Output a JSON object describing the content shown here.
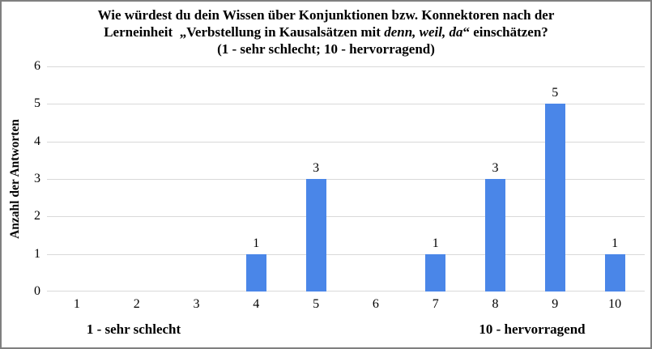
{
  "frame": {
    "background": "#ffffff",
    "border_color": "#7f7f7f"
  },
  "title": {
    "line1": "Wie würdest du dein Wissen über Konjunktionen bzw. Konnektoren nach der",
    "line2_prefix": "Lerneinheit  „Verbstellung in Kausalsätzen mit ",
    "line2_italic": "denn, weil, da",
    "line2_suffix": "“ einschätzen?",
    "line3": "(1 - sehr schlecht; 10 - hervorragend)"
  },
  "chart_data": {
    "type": "bar",
    "title": "Wie würdest du dein Wissen über Konjunktionen bzw. Konnektoren nach der Lerneinheit „Verbstellung in Kausalsätzen mit denn, weil, da“ einschätzen? (1 - sehr schlecht; 10 - hervorragend)",
    "categories": [
      "1",
      "2",
      "3",
      "4",
      "5",
      "6",
      "7",
      "8",
      "9",
      "10"
    ],
    "values": [
      0,
      0,
      0,
      1,
      3,
      0,
      1,
      3,
      5,
      1
    ],
    "ylabel": "Anzahl der Antworten",
    "xlabel_left": "1 - sehr schlecht",
    "xlabel_right": "10 - hervorragend",
    "ylim": [
      0,
      6
    ],
    "ytick_step": 1,
    "grid": true,
    "legend": "none",
    "bar_color": "#4a86e8",
    "gridline_color": "#d9d9d9",
    "value_labels_shown": true
  }
}
